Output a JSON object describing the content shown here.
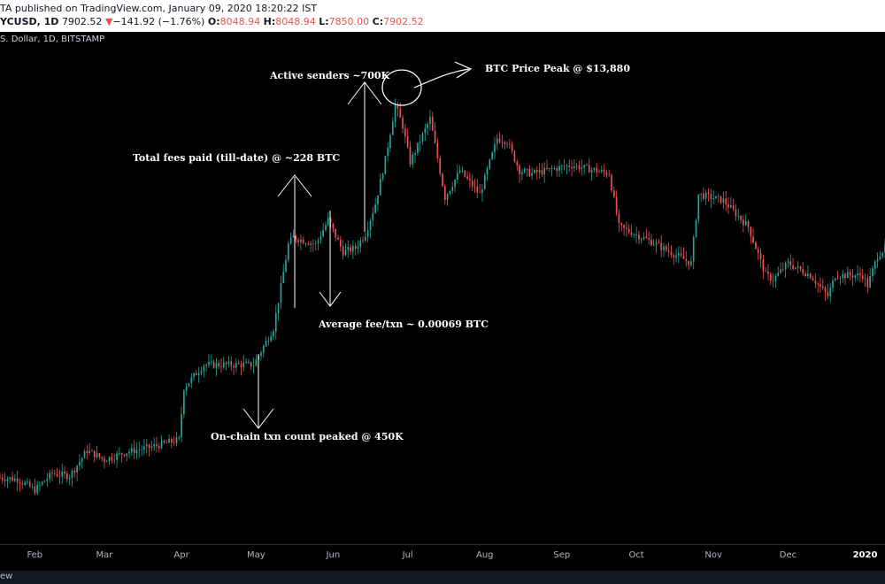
{
  "header": {
    "author_line": "TA published on TradingView.com, January 09, 2020 18:20:22 IST",
    "symbol_tf": "YCUSD, 1D",
    "last": "7902.52",
    "change_arrow": "▼",
    "change": "−141.92 (−1.76%)",
    "o_label": "O:",
    "o_value": "8048.94",
    "h_label": "H:",
    "h_value": "8048.94",
    "l_label": "L:",
    "l_value": "7850.00",
    "c_label": "C:",
    "c_value": "7902.52",
    "symbol_desc": "S. Dollar, 1D, BITSTAMP"
  },
  "footer": {
    "text": "ew"
  },
  "colors": {
    "up": "#26a69a",
    "down": "#ef5350",
    "background": "#000000"
  },
  "chart_data": {
    "type": "candlestick",
    "symbol": "BTCUSD",
    "exchange": "BITSTAMP",
    "timeframe": "1D",
    "period": [
      "2019-01-18",
      "2020-01-09"
    ],
    "ylim": [
      3000,
      14500
    ],
    "y_scale": "log",
    "x_ticks": [
      "Feb",
      "Mar",
      "Apr",
      "May",
      "Jun",
      "Jul",
      "Aug",
      "Sep",
      "Oct",
      "Nov",
      "Dec",
      "2020"
    ],
    "anchor_closes": [
      [
        "2019-01-18",
        3600
      ],
      [
        "2019-01-25",
        3580
      ],
      [
        "2019-02-01",
        3450
      ],
      [
        "2019-02-08",
        3650
      ],
      [
        "2019-02-15",
        3620
      ],
      [
        "2019-02-22",
        3950
      ],
      [
        "2019-03-01",
        3830
      ],
      [
        "2019-03-10",
        3930
      ],
      [
        "2019-03-20",
        4000
      ],
      [
        "2019-03-31",
        4100
      ],
      [
        "2019-04-02",
        4900
      ],
      [
        "2019-04-10",
        5300
      ],
      [
        "2019-04-20",
        5300
      ],
      [
        "2019-04-30",
        5300
      ],
      [
        "2019-05-08",
        6000
      ],
      [
        "2019-05-14",
        8000
      ],
      [
        "2019-05-16",
        8200
      ],
      [
        "2019-05-25",
        8000
      ],
      [
        "2019-05-30",
        8700
      ],
      [
        "2019-06-05",
        7800
      ],
      [
        "2019-06-10",
        7900
      ],
      [
        "2019-06-14",
        8300
      ],
      [
        "2019-06-18",
        9200
      ],
      [
        "2019-06-22",
        10700
      ],
      [
        "2019-06-26",
        12900
      ],
      [
        "2019-06-29",
        12000
      ],
      [
        "2019-07-02",
        10600
      ],
      [
        "2019-07-10",
        12300
      ],
      [
        "2019-07-16",
        9400
      ],
      [
        "2019-07-22",
        10300
      ],
      [
        "2019-07-30",
        9500
      ],
      [
        "2019-08-06",
        11500
      ],
      [
        "2019-08-10",
        11400
      ],
      [
        "2019-08-15",
        10300
      ],
      [
        "2019-08-20",
        10200
      ],
      [
        "2019-09-05",
        10500
      ],
      [
        "2019-09-15",
        10300
      ],
      [
        "2019-09-20",
        10200
      ],
      [
        "2019-09-24",
        8500
      ],
      [
        "2019-10-05",
        8150
      ],
      [
        "2019-10-23",
        7500
      ],
      [
        "2019-10-26",
        9500
      ],
      [
        "2019-11-05",
        9300
      ],
      [
        "2019-11-15",
        8500
      ],
      [
        "2019-11-22",
        7200
      ],
      [
        "2019-11-25",
        7100
      ],
      [
        "2019-12-01",
        7500
      ],
      [
        "2019-12-10",
        7200
      ],
      [
        "2019-12-17",
        6700
      ],
      [
        "2019-12-20",
        7200
      ],
      [
        "2019-12-31",
        7200
      ],
      [
        "2020-01-02",
        6950
      ],
      [
        "2020-01-06",
        7700
      ],
      [
        "2020-01-09",
        7902.52
      ]
    ],
    "annotations": {
      "total_fees": "Total fees paid (till-date) @ ~228 BTC",
      "active_senders": "Active senders ~700K",
      "price_peak": "BTC Price Peak @ $13,880",
      "avg_fee": "Average fee/txn ~ 0.00069 BTC",
      "txn_count": "On-chain txn count peaked @ 450K"
    }
  }
}
